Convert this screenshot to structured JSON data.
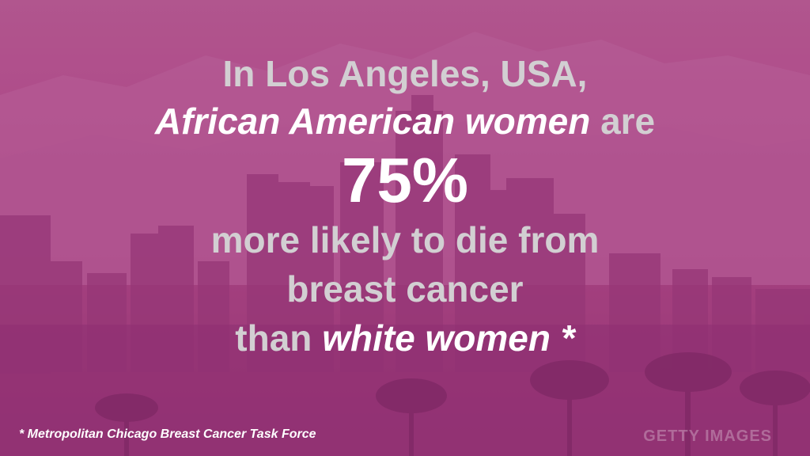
{
  "headline": {
    "line1": "In Los Angeles, USA,",
    "line2_emphasis": "African American women",
    "line2_rest": " are",
    "statistic": "75%",
    "line4": "more likely to die from",
    "line5": "breast cancer",
    "line6_start": "than ",
    "line6_emphasis": "white women",
    "line6_end": " *"
  },
  "footnote": "* Metropolitan Chicago Breast Cancer Task Force",
  "credit": "GETTY IMAGES",
  "colors": {
    "overlay": "#a8407f",
    "text_light": "#d2cfd2",
    "text_white": "#ffffff"
  },
  "background_subject": "Los Angeles downtown skyline with mountains and palm trees"
}
